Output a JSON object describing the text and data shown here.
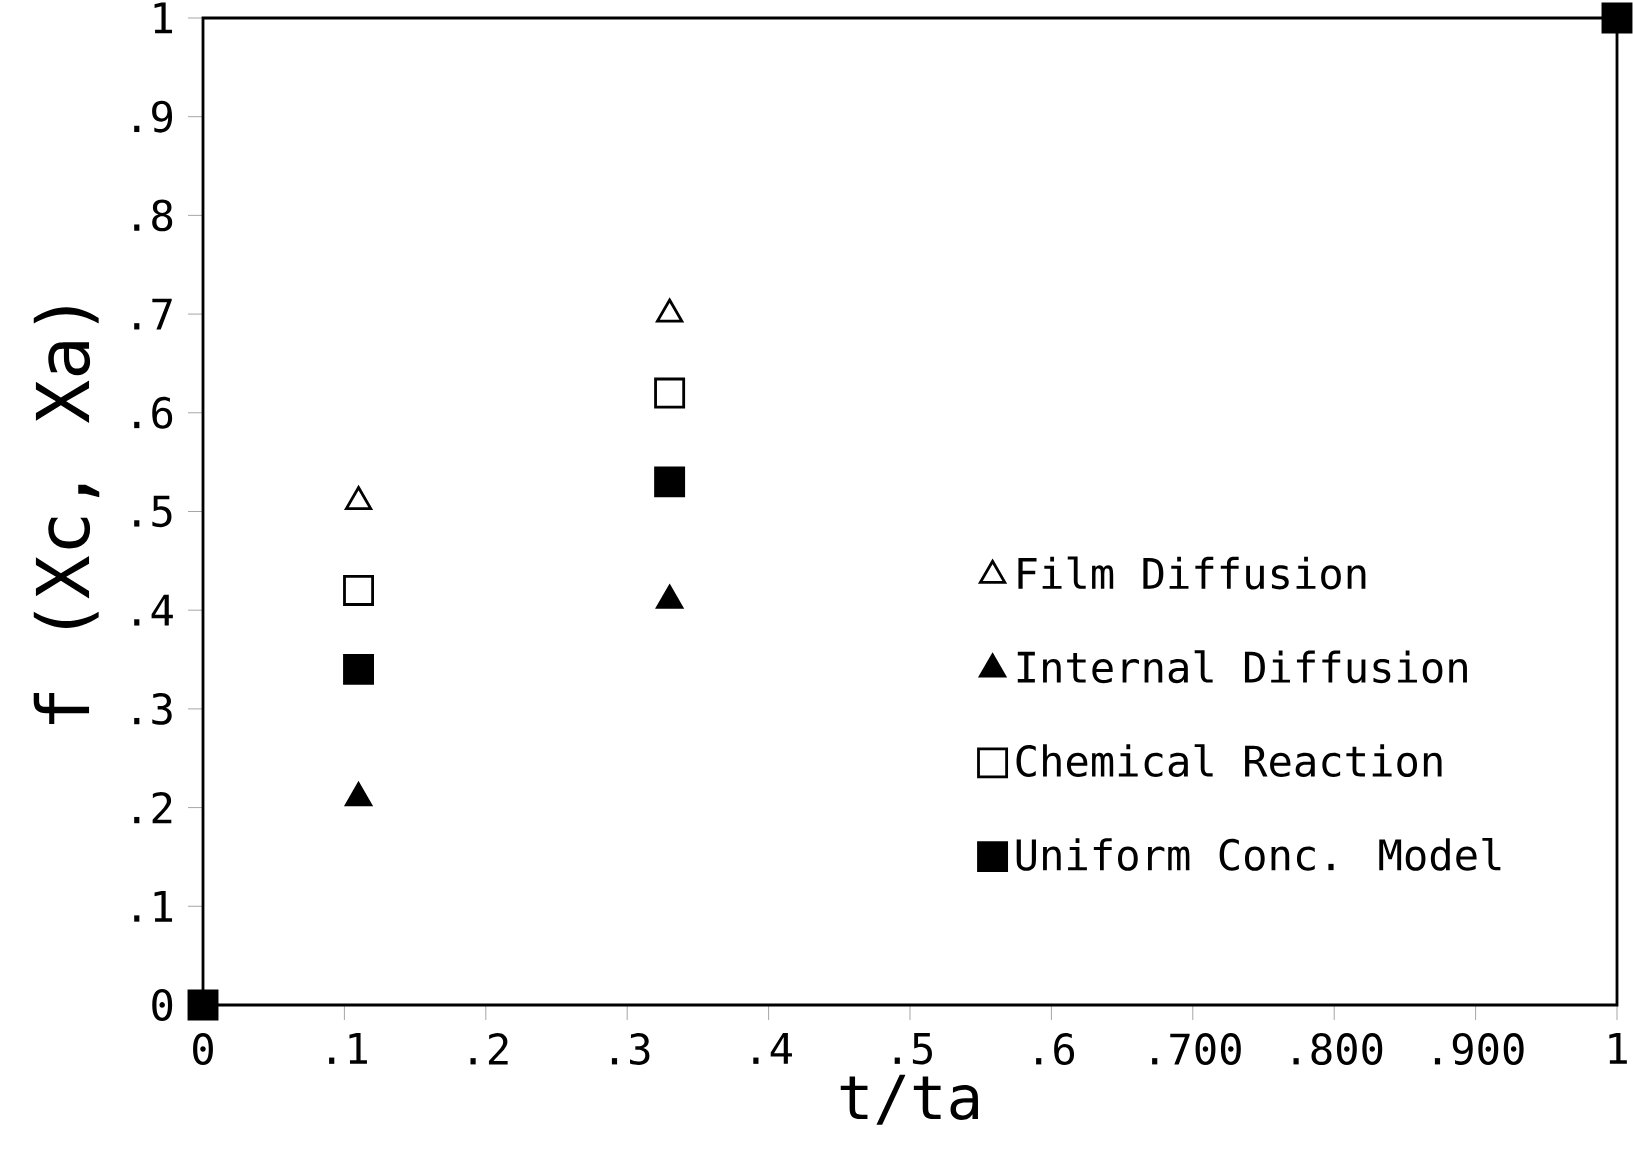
{
  "chart_data": {
    "type": "scatter",
    "xlabel": "t/ta",
    "ylabel": "f (Xc, Xa)",
    "xlim": [
      0,
      1
    ],
    "ylim": [
      0,
      1
    ],
    "xticks": [
      0,
      {
        "value": 0.1,
        "label": ".1"
      },
      {
        "value": 0.2,
        "label": ".2"
      },
      {
        "value": 0.3,
        "label": ".3"
      },
      {
        "value": 0.4,
        "label": ".4"
      },
      {
        "value": 0.5,
        "label": ".5"
      },
      {
        "value": 0.6,
        "label": ".6"
      },
      {
        "value": 0.7,
        "label": ".700"
      },
      {
        "value": 0.8,
        "label": ".800"
      },
      {
        "value": 0.9,
        "label": ".900"
      },
      1
    ],
    "yticks": [
      0,
      {
        "value": 0.1,
        "label": ".1"
      },
      {
        "value": 0.2,
        "label": ".2"
      },
      {
        "value": 0.3,
        "label": ".3"
      },
      {
        "value": 0.4,
        "label": ".4"
      },
      {
        "value": 0.5,
        "label": ".5"
      },
      {
        "value": 0.6,
        "label": ".6"
      },
      {
        "value": 0.7,
        "label": ".7"
      },
      {
        "value": 0.8,
        "label": ".8"
      },
      {
        "value": 0.9,
        "label": ".9"
      },
      1
    ],
    "grid": false,
    "legend": "right",
    "series": [
      {
        "name": "Film  Diffusion",
        "color": "#000000",
        "marker": "triangle",
        "x": [
          0.11,
          0.33
        ],
        "values": [
          0.51,
          0.7
        ]
      },
      {
        "name": "Internal Diffusion",
        "color": "#000000",
        "marker": "triangle",
        "x": [
          0.11,
          0.33
        ],
        "values": [
          0.21,
          0.41
        ]
      },
      {
        "name": "Chemical Reaction",
        "color": "#000000",
        "marker": "square",
        "x": [
          0.11,
          0.33
        ],
        "values": [
          0.42,
          0.62
        ]
      },
      {
        "name": "Uniform Conc. Model",
        "color": "#000000",
        "marker": "square",
        "x": [
          0,
          0.11,
          0.33,
          1
        ],
        "values": [
          0,
          0.34,
          0.53,
          1
        ]
      }
    ]
  }
}
